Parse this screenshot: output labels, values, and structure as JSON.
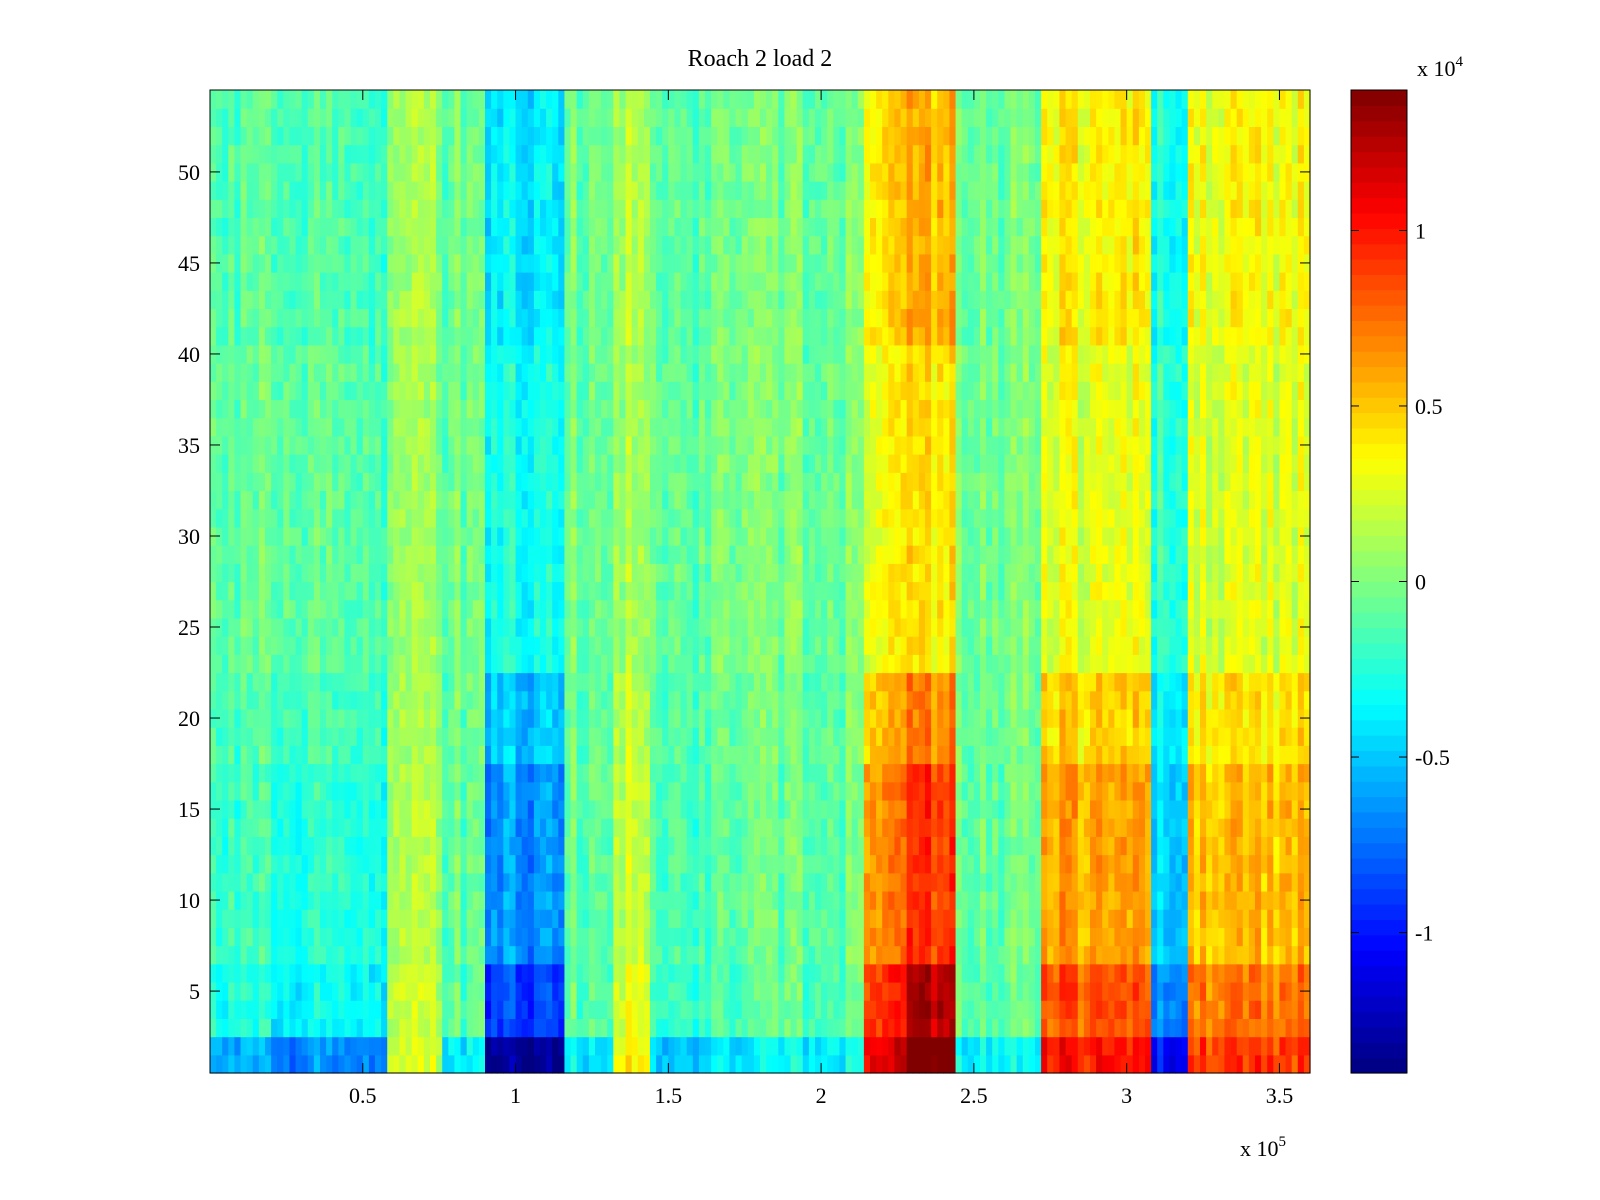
{
  "chart_data": {
    "type": "heatmap",
    "title": "Roach 2 load 2",
    "xlabel": "",
    "ylabel": "",
    "x_multiplier_label": "x 10",
    "x_multiplier_exponent": "5",
    "x_range": [
      0,
      3.6
    ],
    "x_range_units": "x 10^5",
    "x_ticks": [
      "0.5",
      "1",
      "1.5",
      "2",
      "2.5",
      "3",
      "3.5"
    ],
    "x_tick_values": [
      0.5,
      1,
      1.5,
      2,
      2.5,
      3,
      3.5
    ],
    "y_range": [
      0.5,
      54.5
    ],
    "y_ticks": [
      "5",
      "10",
      "15",
      "20",
      "25",
      "30",
      "35",
      "40",
      "45",
      "50"
    ],
    "y_tick_values": [
      5,
      10,
      15,
      20,
      25,
      30,
      35,
      40,
      45,
      50
    ],
    "colorbar": {
      "multiplier_label": "x 10",
      "multiplier_exponent": "4",
      "range": [
        -1.4,
        1.4
      ],
      "ticks": [
        "-1",
        "-0.5",
        "0",
        "0.5",
        "1"
      ],
      "tick_values": [
        -1,
        -0.5,
        0,
        0.5,
        1
      ],
      "colormap": "jet"
    },
    "x_bands": [
      {
        "x0": 0.0,
        "x1": 0.2,
        "level": -0.15
      },
      {
        "x0": 0.2,
        "x1": 0.3,
        "level": -0.25
      },
      {
        "x0": 0.3,
        "x1": 0.58,
        "level": -0.2
      },
      {
        "x0": 0.58,
        "x1": 0.77,
        "level": 0.1
      },
      {
        "x0": 0.77,
        "x1": 0.9,
        "level": -0.05
      },
      {
        "x0": 0.9,
        "x1": 1.16,
        "level": -0.5
      },
      {
        "x0": 1.16,
        "x1": 1.33,
        "level": -0.05
      },
      {
        "x0": 1.33,
        "x1": 1.45,
        "level": 0.15
      },
      {
        "x0": 1.45,
        "x1": 1.8,
        "level": -0.1
      },
      {
        "x0": 1.8,
        "x1": 2.15,
        "level": -0.05
      },
      {
        "x0": 2.15,
        "x1": 2.28,
        "level": 0.5
      },
      {
        "x0": 2.28,
        "x1": 2.43,
        "level": 0.7
      },
      {
        "x0": 2.43,
        "x1": 2.72,
        "level": -0.05
      },
      {
        "x0": 2.72,
        "x1": 3.08,
        "level": 0.45
      },
      {
        "x0": 3.08,
        "x1": 3.2,
        "level": -0.35
      },
      {
        "x0": 3.2,
        "x1": 3.6,
        "level": 0.4
      }
    ],
    "y_profile": [
      {
        "y0": 0.5,
        "y1": 2.5,
        "gain": 2.2
      },
      {
        "y0": 2.5,
        "y1": 6.5,
        "gain": 1.8
      },
      {
        "y0": 6.5,
        "y1": 17.5,
        "gain": 1.3
      },
      {
        "y0": 17.5,
        "y1": 22.5,
        "gain": 1.0
      },
      {
        "y0": 22.5,
        "y1": 40.5,
        "gain": 0.6
      },
      {
        "y0": 40.5,
        "y1": 54.5,
        "gain": 0.8
      }
    ]
  }
}
